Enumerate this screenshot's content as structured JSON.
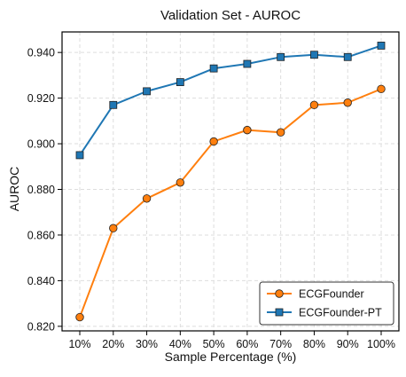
{
  "chart_data": {
    "type": "line",
    "title": "Validation Set - AUROC",
    "xlabel": "Sample Percentage (%)",
    "ylabel": "AUROC",
    "categories": [
      "10%",
      "20%",
      "30%",
      "40%",
      "50%",
      "60%",
      "70%",
      "80%",
      "90%",
      "100%"
    ],
    "ylim": [
      0.818,
      0.949
    ],
    "yticks": [
      0.82,
      0.84,
      0.86,
      0.88,
      0.9,
      0.92,
      0.94
    ],
    "ytick_labels": [
      "0.820",
      "0.840",
      "0.860",
      "0.880",
      "0.900",
      "0.920",
      "0.940"
    ],
    "grid": true,
    "legend_position": "bottom-right",
    "series": [
      {
        "name": "ECGFounder",
        "color": "#ff7f0e",
        "marker": "circle",
        "values": [
          0.824,
          0.863,
          0.876,
          0.883,
          0.901,
          0.906,
          0.905,
          0.917,
          0.918,
          0.924
        ]
      },
      {
        "name": "ECGFounder-PT",
        "color": "#1f77b4",
        "marker": "square",
        "values": [
          0.895,
          0.917,
          0.923,
          0.927,
          0.933,
          0.935,
          0.938,
          0.939,
          0.938,
          0.943
        ]
      }
    ]
  }
}
